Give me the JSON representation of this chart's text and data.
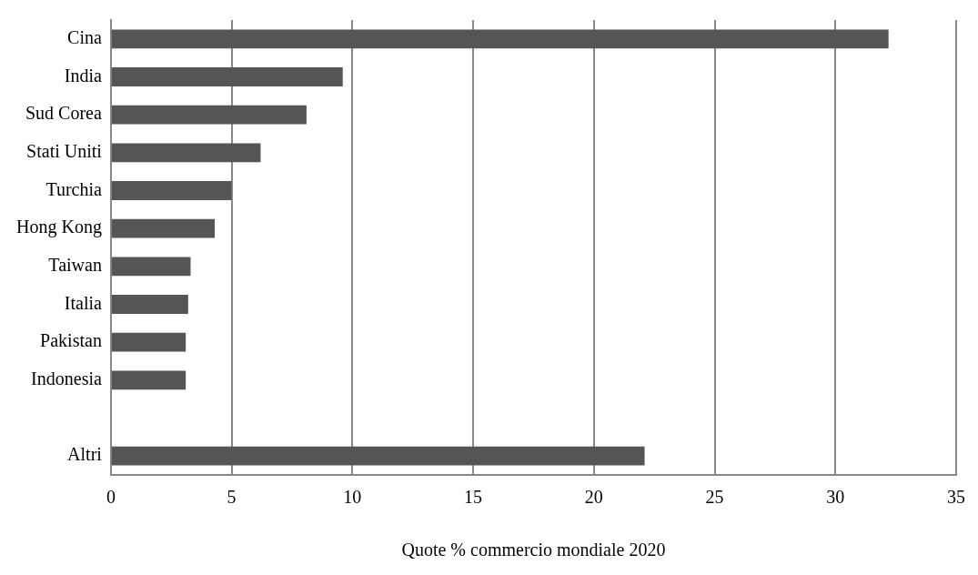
{
  "chart_data": {
    "type": "bar",
    "orientation": "horizontal",
    "xlabel": "Quote % commercio mondiale 2020",
    "categories": [
      "Cina",
      "India",
      "Sud Corea",
      "Stati Uniti",
      "Turchia",
      "Hong Kong",
      "Taiwan",
      "Italia",
      "Pakistan",
      "Indonesia",
      null,
      "Altri"
    ],
    "values": [
      32.2,
      9.6,
      8.1,
      6.2,
      5.0,
      4.3,
      3.3,
      3.2,
      3.1,
      3.1,
      null,
      22.1
    ],
    "color": "#555555",
    "xlim": [
      0,
      35
    ],
    "xticks": [
      0,
      5,
      10,
      15,
      20,
      25,
      30,
      35
    ],
    "grid": "x",
    "legend": false
  }
}
